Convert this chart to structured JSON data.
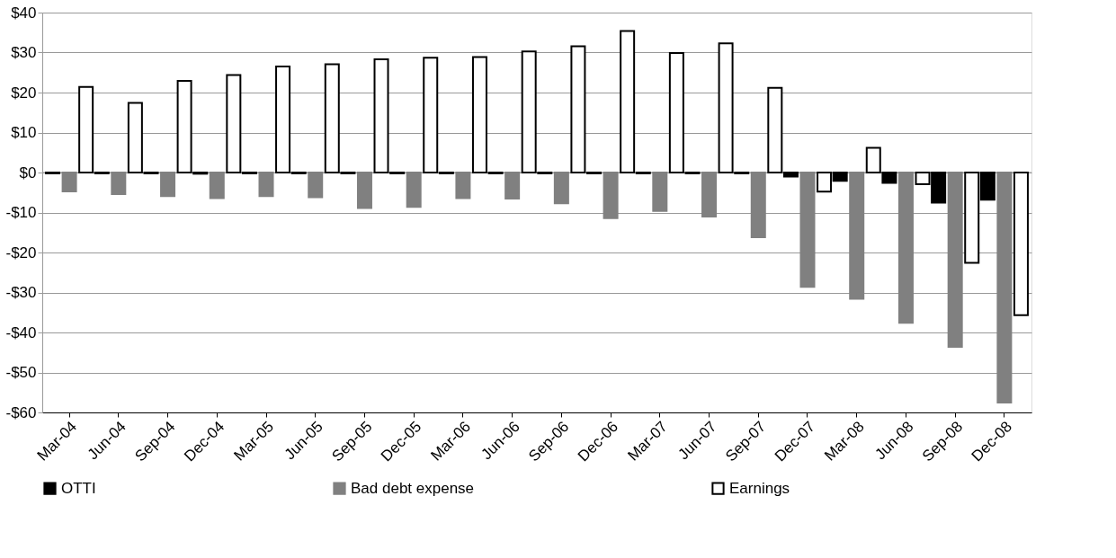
{
  "chart_data": {
    "type": "bar",
    "categories": [
      "Mar-04",
      "Jun-04",
      "Sep-04",
      "Dec-04",
      "Mar-05",
      "Jun-05",
      "Sep-05",
      "Dec-05",
      "Mar-06",
      "Jun-06",
      "Sep-06",
      "Dec-06",
      "Mar-07",
      "Jun-07",
      "Sep-07",
      "Dec-07",
      "Mar-08",
      "Jun-08",
      "Sep-08",
      "Dec-08"
    ],
    "series": [
      {
        "name": "OTTI",
        "color": "#000000",
        "values": [
          -0.2,
          -0.2,
          -0.2,
          -0.3,
          -0.2,
          -0.2,
          -0.2,
          -0.2,
          -0.2,
          -0.2,
          -0.2,
          -0.2,
          -0.2,
          -0.2,
          -0.2,
          -1.0,
          -2.1,
          -2.6,
          -7.5,
          -6.8
        ]
      },
      {
        "name": "Bad debt expense",
        "color": "#808080",
        "values": [
          -4.7,
          -5.4,
          -5.9,
          -6.4,
          -5.9,
          -6.2,
          -8.9,
          -8.6,
          -6.4,
          -6.5,
          -7.7,
          -11.4,
          -9.6,
          -11.0,
          -16.2,
          -28.6,
          -31.6,
          -37.6,
          -43.6,
          -57.5
        ]
      },
      {
        "name": "Earnings",
        "color": "#ffffff",
        "values": [
          21.4,
          17.4,
          22.9,
          24.4,
          26.5,
          27.1,
          28.3,
          28.7,
          28.9,
          30.3,
          31.6,
          35.4,
          29.9,
          32.3,
          21.2,
          -4.8,
          6.2,
          -2.9,
          -22.6,
          -35.7
        ]
      }
    ],
    "ylim": [
      -60,
      40
    ],
    "yticks": [
      {
        "value": -60,
        "label": "-$60"
      },
      {
        "value": -50,
        "label": "-$50"
      },
      {
        "value": -40,
        "label": "-$40"
      },
      {
        "value": -30,
        "label": "-$30"
      },
      {
        "value": -20,
        "label": "-$20"
      },
      {
        "value": -10,
        "label": "-$10"
      },
      {
        "value": 0,
        "label": "$0"
      },
      {
        "value": 10,
        "label": "$10"
      },
      {
        "value": 20,
        "label": "$20"
      },
      {
        "value": 30,
        "label": "$30"
      },
      {
        "value": 40,
        "label": "$40"
      }
    ],
    "grid": "y",
    "legend": "bottom"
  }
}
